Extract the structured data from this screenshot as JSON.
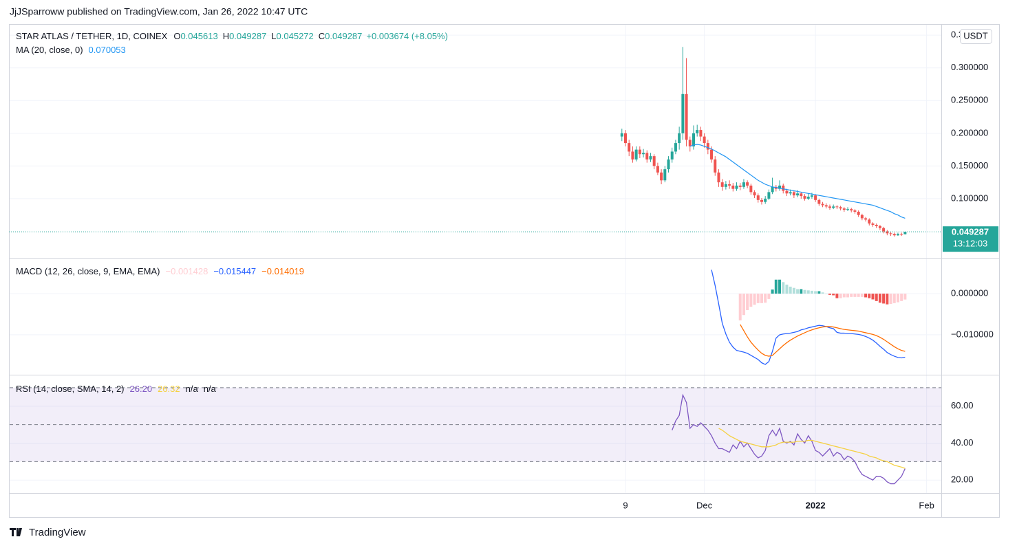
{
  "header": {
    "published": "JjJSparroww published on TradingView.com, Jan 26, 2022 10:47 UTC"
  },
  "footer": {
    "brand": "TradingView"
  },
  "chart_data": [
    {
      "type": "candlestick",
      "title": "STAR ATLAS / TETHER, 1D, COINEX",
      "ohlc_labels": [
        "O",
        "H",
        "L",
        "C"
      ],
      "change_label": "+0.003674 (+8.05%)",
      "currency": "USDT",
      "countdown": "13:12:03",
      "up_color": "#26a69a",
      "down_color": "#ef5350",
      "categories": [
        null,
        "9",
        null,
        null,
        null,
        null,
        null,
        null,
        null,
        null,
        null,
        null,
        null,
        null,
        null,
        null,
        null,
        null,
        null,
        null,
        null,
        null,
        null,
        "Dec",
        null,
        null,
        null,
        null,
        null,
        null,
        null,
        null,
        null,
        null,
        null,
        null,
        null,
        null,
        null,
        null,
        null,
        null,
        null,
        null,
        null,
        null,
        null,
        null,
        null,
        null,
        null,
        null,
        null,
        null,
        "2022",
        null,
        null,
        null,
        null,
        null,
        null,
        null,
        null,
        null,
        null,
        null,
        null,
        null,
        null,
        null,
        null,
        null,
        null,
        null,
        null,
        null,
        null,
        null,
        null,
        null,
        null,
        null,
        null,
        null,
        null,
        "Feb",
        null,
        null,
        null
      ],
      "open": [
        0.195,
        0.2,
        0.185,
        0.172,
        0.16,
        0.175,
        0.168,
        0.17,
        0.16,
        0.165,
        0.15,
        0.14,
        0.128,
        0.145,
        0.16,
        0.172,
        0.185,
        0.2,
        0.26,
        0.19,
        0.18,
        0.2,
        0.205,
        0.195,
        0.185,
        0.175,
        0.16,
        0.14,
        0.125,
        0.118,
        0.122,
        0.12,
        0.115,
        0.12,
        0.118,
        0.125,
        0.12,
        0.11,
        0.105,
        0.098,
        0.095,
        0.1,
        0.11,
        0.118,
        0.115,
        0.12,
        0.112,
        0.108,
        0.11,
        0.105,
        0.108,
        0.104,
        0.1,
        0.103,
        0.105,
        0.098,
        0.092,
        0.09,
        0.088,
        0.086,
        0.088,
        0.087,
        0.085,
        0.083,
        0.084,
        0.082,
        0.08,
        0.075,
        0.07,
        0.068,
        0.062,
        0.06,
        0.058,
        0.055,
        0.05,
        0.047,
        0.046,
        0.044,
        0.046,
        0.045613,
        null,
        null,
        null,
        null,
        null,
        null,
        null,
        null,
        null
      ],
      "high": [
        0.207,
        0.205,
        0.19,
        0.18,
        0.18,
        0.18,
        0.176,
        0.174,
        0.17,
        0.168,
        0.155,
        0.145,
        0.15,
        0.165,
        0.178,
        0.19,
        0.21,
        0.332,
        0.315,
        0.195,
        0.212,
        0.213,
        0.21,
        0.2,
        0.19,
        0.18,
        0.165,
        0.145,
        0.13,
        0.127,
        0.128,
        0.124,
        0.125,
        0.124,
        0.13,
        0.128,
        0.123,
        0.113,
        0.108,
        0.101,
        0.104,
        0.114,
        0.132,
        0.121,
        0.128,
        0.123,
        0.115,
        0.114,
        0.112,
        0.113,
        0.11,
        0.107,
        0.108,
        0.109,
        0.107,
        0.1,
        0.095,
        0.093,
        0.091,
        0.091,
        0.09,
        0.089,
        0.087,
        0.087,
        0.086,
        0.084,
        0.082,
        0.077,
        0.072,
        0.07,
        0.064,
        0.062,
        0.06,
        0.057,
        0.052,
        0.049,
        0.048,
        0.048,
        0.048,
        0.049287,
        null,
        null,
        null,
        null,
        null,
        null,
        null,
        null,
        null
      ],
      "low": [
        0.188,
        0.18,
        0.165,
        0.155,
        0.157,
        0.162,
        0.163,
        0.155,
        0.156,
        0.145,
        0.136,
        0.122,
        0.125,
        0.14,
        0.155,
        0.168,
        0.175,
        0.19,
        0.18,
        0.172,
        0.175,
        0.195,
        0.188,
        0.178,
        0.168,
        0.155,
        0.135,
        0.118,
        0.112,
        0.114,
        0.115,
        0.111,
        0.112,
        0.113,
        0.115,
        0.116,
        0.106,
        0.101,
        0.094,
        0.091,
        0.092,
        0.098,
        0.107,
        0.111,
        0.112,
        0.108,
        0.104,
        0.105,
        0.101,
        0.102,
        0.1,
        0.097,
        0.098,
        0.1,
        0.095,
        0.089,
        0.087,
        0.085,
        0.083,
        0.084,
        0.084,
        0.082,
        0.08,
        0.081,
        0.079,
        0.077,
        0.072,
        0.067,
        0.065,
        0.059,
        0.057,
        0.055,
        0.052,
        0.047,
        0.044,
        0.043,
        0.042,
        0.043,
        0.043,
        0.045272,
        null,
        null,
        null,
        null,
        null,
        null,
        null,
        null,
        null
      ],
      "close": [
        0.2,
        0.185,
        0.172,
        0.16,
        0.175,
        0.168,
        0.17,
        0.16,
        0.165,
        0.15,
        0.14,
        0.128,
        0.145,
        0.16,
        0.172,
        0.185,
        0.2,
        0.26,
        0.19,
        0.18,
        0.2,
        0.205,
        0.195,
        0.185,
        0.175,
        0.16,
        0.14,
        0.125,
        0.118,
        0.122,
        0.12,
        0.115,
        0.12,
        0.118,
        0.125,
        0.12,
        0.11,
        0.105,
        0.098,
        0.095,
        0.1,
        0.11,
        0.118,
        0.115,
        0.12,
        0.112,
        0.108,
        0.11,
        0.105,
        0.108,
        0.104,
        0.1,
        0.103,
        0.105,
        0.098,
        0.092,
        0.09,
        0.088,
        0.086,
        0.088,
        0.087,
        0.085,
        0.083,
        0.084,
        0.082,
        0.08,
        0.075,
        0.07,
        0.068,
        0.062,
        0.06,
        0.058,
        0.055,
        0.05,
        0.047,
        0.046,
        0.044,
        0.046,
        0.045613,
        0.049287,
        null,
        null,
        null,
        null,
        null,
        null,
        null,
        null,
        null
      ],
      "ma": {
        "name": "MA (20, close, 0)",
        "color": "#2196f3",
        "values": [
          null,
          null,
          null,
          null,
          null,
          null,
          null,
          null,
          null,
          null,
          null,
          null,
          null,
          null,
          null,
          null,
          null,
          null,
          null,
          0.18,
          0.182,
          0.183,
          0.182,
          0.18,
          0.178,
          0.176,
          0.173,
          0.17,
          0.167,
          0.164,
          0.16,
          0.156,
          0.152,
          0.148,
          0.144,
          0.14,
          0.136,
          0.132,
          0.128,
          0.125,
          0.122,
          0.12,
          0.118,
          0.117,
          0.116,
          0.115,
          0.114,
          0.113,
          0.112,
          0.111,
          0.11,
          0.109,
          0.108,
          0.107,
          0.106,
          0.105,
          0.104,
          0.103,
          0.102,
          0.101,
          0.1,
          0.099,
          0.098,
          0.097,
          0.096,
          0.095,
          0.094,
          0.093,
          0.092,
          0.091,
          0.09,
          0.088,
          0.086,
          0.084,
          0.082,
          0.08,
          0.077,
          0.075,
          0.072,
          0.070053,
          null,
          null,
          null,
          null,
          null,
          null,
          null,
          null,
          null
        ]
      },
      "ylim": [
        0.0095,
        0.367
      ],
      "yticks": [
        {
          "value": 0.1,
          "label": "0.100000"
        },
        {
          "value": 0.15,
          "label": "0.150000"
        },
        {
          "value": 0.2,
          "label": "0.200000"
        },
        {
          "value": 0.25,
          "label": "0.250000"
        },
        {
          "value": 0.3,
          "label": "0.300000"
        },
        {
          "value": 0.35,
          "label": "0.350000"
        }
      ],
      "grid": true
    },
    {
      "type": "macd",
      "title": "MACD (12, 26, close, 9, EMA, EMA)",
      "histogram": {
        "colors": [
          "#26a69a",
          "#b2dfdb",
          "#ef5350",
          "#ffcdd2"
        ],
        "value_label": "−0.001428",
        "values": [
          null,
          null,
          null,
          null,
          null,
          null,
          null,
          null,
          null,
          null,
          null,
          null,
          null,
          null,
          null,
          null,
          null,
          null,
          null,
          null,
          null,
          null,
          null,
          null,
          null,
          null,
          null,
          null,
          null,
          null,
          null,
          null,
          null,
          -0.0065,
          -0.0052,
          -0.004,
          -0.0032,
          -0.0027,
          -0.0023,
          -0.0023,
          -0.0022,
          -0.0013,
          0.001,
          0.0034,
          0.0034,
          0.0028,
          0.0022,
          0.0017,
          0.0014,
          0.0011,
          0.0011,
          0.0009,
          0.0008,
          0.0007,
          0.0006,
          0.0006,
          0.0003,
          0.0,
          -0.0003,
          -0.0004,
          -0.0011,
          -0.0011,
          -0.0009,
          -0.0009,
          -0.0008,
          -0.0008,
          -0.0008,
          -0.0008,
          -0.0009,
          -0.0011,
          -0.0014,
          -0.0018,
          -0.0022,
          -0.0024,
          -0.0026,
          -0.0025,
          -0.0023,
          -0.0021,
          -0.0018,
          -0.001428,
          null,
          null,
          null,
          null,
          null,
          null,
          null,
          null,
          null
        ]
      },
      "series": [
        {
          "color": "#2962ff",
          "value_label": "−0.015447",
          "values": [
            null,
            null,
            null,
            null,
            null,
            null,
            null,
            null,
            null,
            null,
            null,
            null,
            null,
            null,
            null,
            null,
            null,
            null,
            null,
            null,
            null,
            null,
            null,
            null,
            null,
            0.0058,
            0.002,
            -0.0025,
            -0.0072,
            -0.0098,
            -0.0118,
            -0.013,
            -0.0138,
            -0.014,
            -0.0142,
            -0.0145,
            -0.015,
            -0.0155,
            -0.016,
            -0.0168,
            -0.0172,
            -0.0165,
            -0.014,
            -0.0108,
            -0.01,
            -0.0098,
            -0.0097,
            -0.0096,
            -0.0094,
            -0.0092,
            -0.0088,
            -0.0086,
            -0.0083,
            -0.0081,
            -0.0079,
            -0.0077,
            -0.0078,
            -0.008,
            -0.0083,
            -0.0085,
            -0.0094,
            -0.0096,
            -0.0096,
            -0.0097,
            -0.0097,
            -0.0098,
            -0.0099,
            -0.0101,
            -0.0104,
            -0.0108,
            -0.0113,
            -0.012,
            -0.0128,
            -0.0135,
            -0.0143,
            -0.0148,
            -0.0152,
            -0.0155,
            -0.0156,
            -0.015447,
            null,
            null,
            null,
            null,
            null,
            null,
            null,
            null,
            null
          ]
        },
        {
          "color": "#ff6d00",
          "value_label": "−0.014019",
          "values": [
            null,
            null,
            null,
            null,
            null,
            null,
            null,
            null,
            null,
            null,
            null,
            null,
            null,
            null,
            null,
            null,
            null,
            null,
            null,
            null,
            null,
            null,
            null,
            null,
            null,
            null,
            null,
            null,
            null,
            null,
            null,
            null,
            null,
            -0.0075,
            -0.009,
            -0.0105,
            -0.0118,
            -0.0128,
            -0.0137,
            -0.0145,
            -0.015,
            -0.0152,
            -0.015,
            -0.0142,
            -0.0134,
            -0.0126,
            -0.0119,
            -0.0113,
            -0.0108,
            -0.0103,
            -0.0099,
            -0.0095,
            -0.0091,
            -0.0088,
            -0.0085,
            -0.0083,
            -0.0081,
            -0.008,
            -0.008,
            -0.0081,
            -0.0083,
            -0.0085,
            -0.0087,
            -0.0088,
            -0.0089,
            -0.009,
            -0.0091,
            -0.0093,
            -0.0095,
            -0.0097,
            -0.0099,
            -0.0102,
            -0.0106,
            -0.0111,
            -0.0117,
            -0.0123,
            -0.0129,
            -0.0134,
            -0.0138,
            -0.014019,
            null,
            null,
            null,
            null,
            null,
            null,
            null,
            null,
            null
          ]
        }
      ],
      "ylim": [
        -0.0197,
        0.0087
      ],
      "yticks": [
        {
          "value": -0.01,
          "label": "−0.010000"
        },
        {
          "value": 0,
          "label": "0.000000"
        }
      ],
      "grid": true
    },
    {
      "type": "rsi",
      "title": "RSI (14, close, SMA, 14, 2)",
      "extra_labels": [
        "n/a",
        "n/a"
      ],
      "band_levels": [
        30,
        50,
        70
      ],
      "band_color": "#7e57c2",
      "series": [
        {
          "color": "#7e57c2",
          "value_label": "26.20",
          "values": [
            null,
            null,
            null,
            null,
            null,
            null,
            null,
            null,
            null,
            null,
            null,
            null,
            null,
            null,
            47,
            52,
            55,
            66,
            62,
            48,
            50,
            49,
            51,
            49,
            47,
            44,
            40,
            37,
            37,
            36,
            35,
            39,
            37,
            41,
            38,
            40,
            37,
            34,
            32,
            33,
            36,
            44,
            47,
            44,
            48,
            41,
            40,
            41,
            39,
            45,
            42,
            40,
            44,
            41,
            36,
            35,
            33,
            35,
            37,
            33,
            35,
            34,
            31,
            33,
            32,
            30,
            26,
            23,
            22,
            21,
            20,
            22,
            22,
            21,
            19,
            18,
            18,
            20,
            22,
            26.2,
            null,
            null,
            null,
            null,
            null,
            null,
            null,
            null,
            null
          ]
        },
        {
          "color": "#f5d142",
          "value_label": "26.32",
          "values": [
            null,
            null,
            null,
            null,
            null,
            null,
            null,
            null,
            null,
            null,
            null,
            null,
            null,
            null,
            null,
            null,
            null,
            null,
            null,
            null,
            null,
            null,
            null,
            null,
            null,
            null,
            null,
            48,
            47,
            45.5,
            44,
            43,
            42,
            41,
            40.5,
            40,
            39.5,
            39,
            38.5,
            38,
            38,
            38,
            38.5,
            39,
            40,
            40.5,
            40.5,
            40.5,
            40.5,
            41,
            41,
            41,
            41.5,
            41.5,
            41,
            40.5,
            40,
            39.5,
            39,
            38.5,
            38,
            37.5,
            37,
            36.5,
            36,
            35.5,
            35,
            34.5,
            34,
            33,
            32.5,
            32,
            31,
            30.5,
            30,
            29,
            28,
            27.5,
            27,
            26.32,
            null,
            null,
            null,
            null,
            null,
            null,
            null,
            null,
            null
          ]
        }
      ],
      "ylim": [
        13,
        77
      ],
      "yticks": [
        {
          "value": 20,
          "label": "20.00"
        },
        {
          "value": 40,
          "label": "40.00"
        },
        {
          "value": 60,
          "label": "60.00"
        }
      ],
      "grid": true
    }
  ]
}
